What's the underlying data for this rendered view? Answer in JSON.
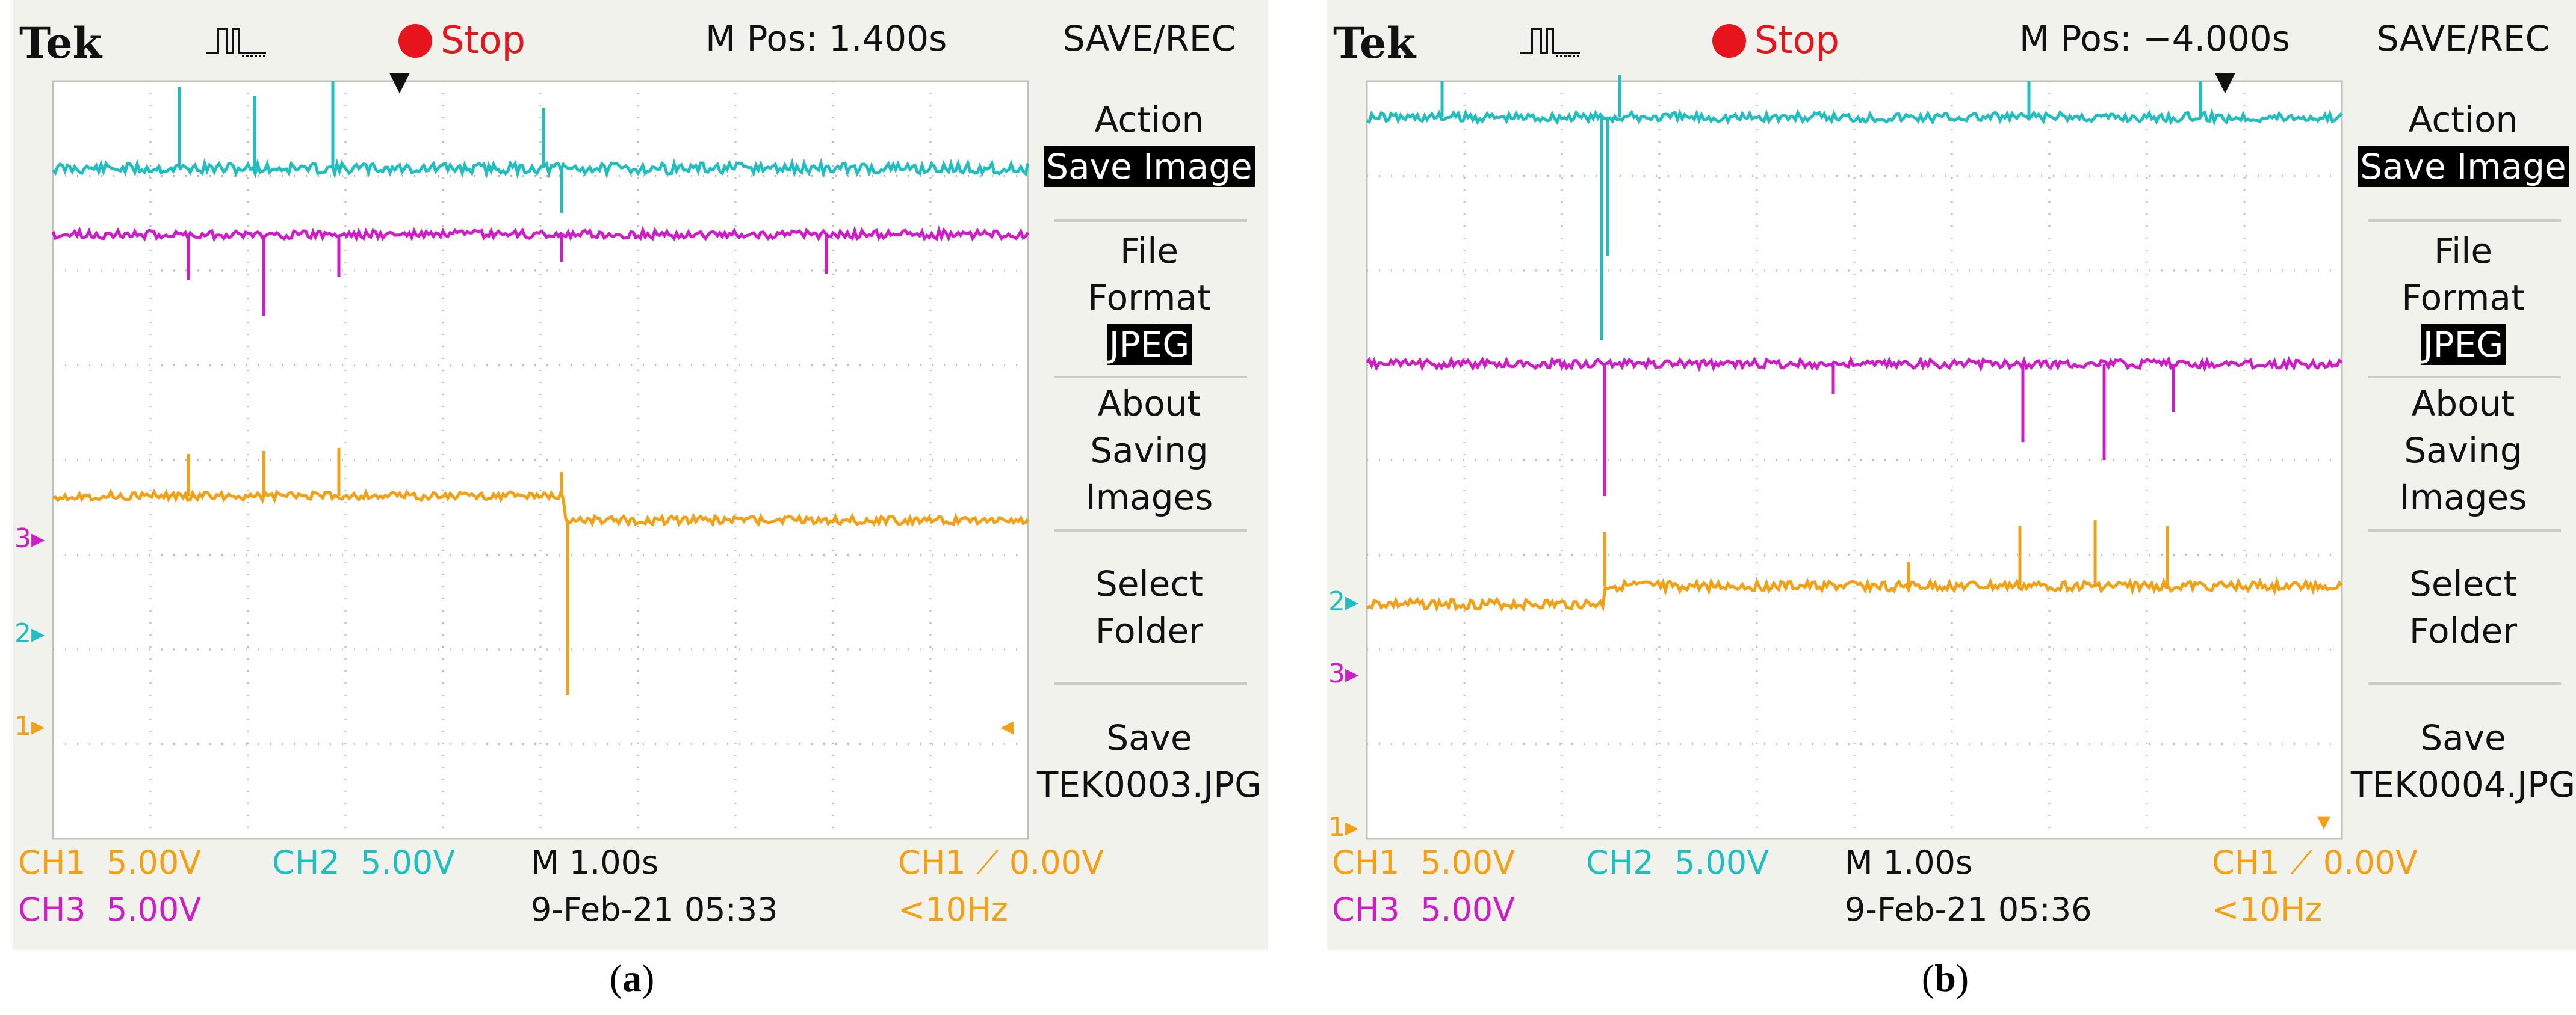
{
  "panels": [
    {
      "caption": {
        "open": "(",
        "letter": "a",
        "close": ")"
      },
      "logo": "Tek",
      "run_state": "Stop",
      "mpos": "M Pos: 1.400s",
      "menu": {
        "title": "SAVE/REC",
        "action_label": "Action",
        "action_value": "Save Image",
        "file_label_1": "File",
        "file_label_2": "Format",
        "file_value": "JPEG",
        "about_1": "About",
        "about_2": "Saving",
        "about_3": "Images",
        "select_1": "Select",
        "select_2": "Folder",
        "save_1": "Save",
        "save_2": "TEK0003.JPG"
      },
      "markers": {
        "ch3": "3",
        "ch2": "2",
        "ch1": "1"
      },
      "status": {
        "ch1": "CH1  5.00V",
        "ch2": "CH2  5.00V",
        "ch3": "CH3  5.00V",
        "timebase": "M 1.00s",
        "date": "9-Feb-21 05:33",
        "trigger": "CH1 ⟋ 0.00V",
        "freq": "<10Hz"
      }
    },
    {
      "caption": {
        "open": "(",
        "letter": "b",
        "close": ")"
      },
      "logo": "Tek",
      "run_state": "Stop",
      "mpos": "M Pos: −4.000s",
      "menu": {
        "title": "SAVE/REC",
        "action_label": "Action",
        "action_value": "Save Image",
        "file_label_1": "File",
        "file_label_2": "Format",
        "file_value": "JPEG",
        "about_1": "About",
        "about_2": "Saving",
        "about_3": "Images",
        "select_1": "Select",
        "select_2": "Folder",
        "save_1": "Save",
        "save_2": "TEK0004.JPG"
      },
      "markers": {
        "ch2": "2",
        "ch3": "3",
        "ch1": "1"
      },
      "status": {
        "ch1": "CH1  5.00V",
        "ch2": "CH2  5.00V",
        "ch3": "CH3  5.00V",
        "timebase": "M 1.00s",
        "date": "9-Feb-21 05:36",
        "trigger": "CH1 ⟋ 0.00V",
        "freq": "<10Hz"
      }
    }
  ],
  "colors": {
    "ch1": "#f4a012",
    "ch2": "#1fbfc1",
    "ch3": "#d21bc8",
    "stop": "#e8141b"
  }
}
